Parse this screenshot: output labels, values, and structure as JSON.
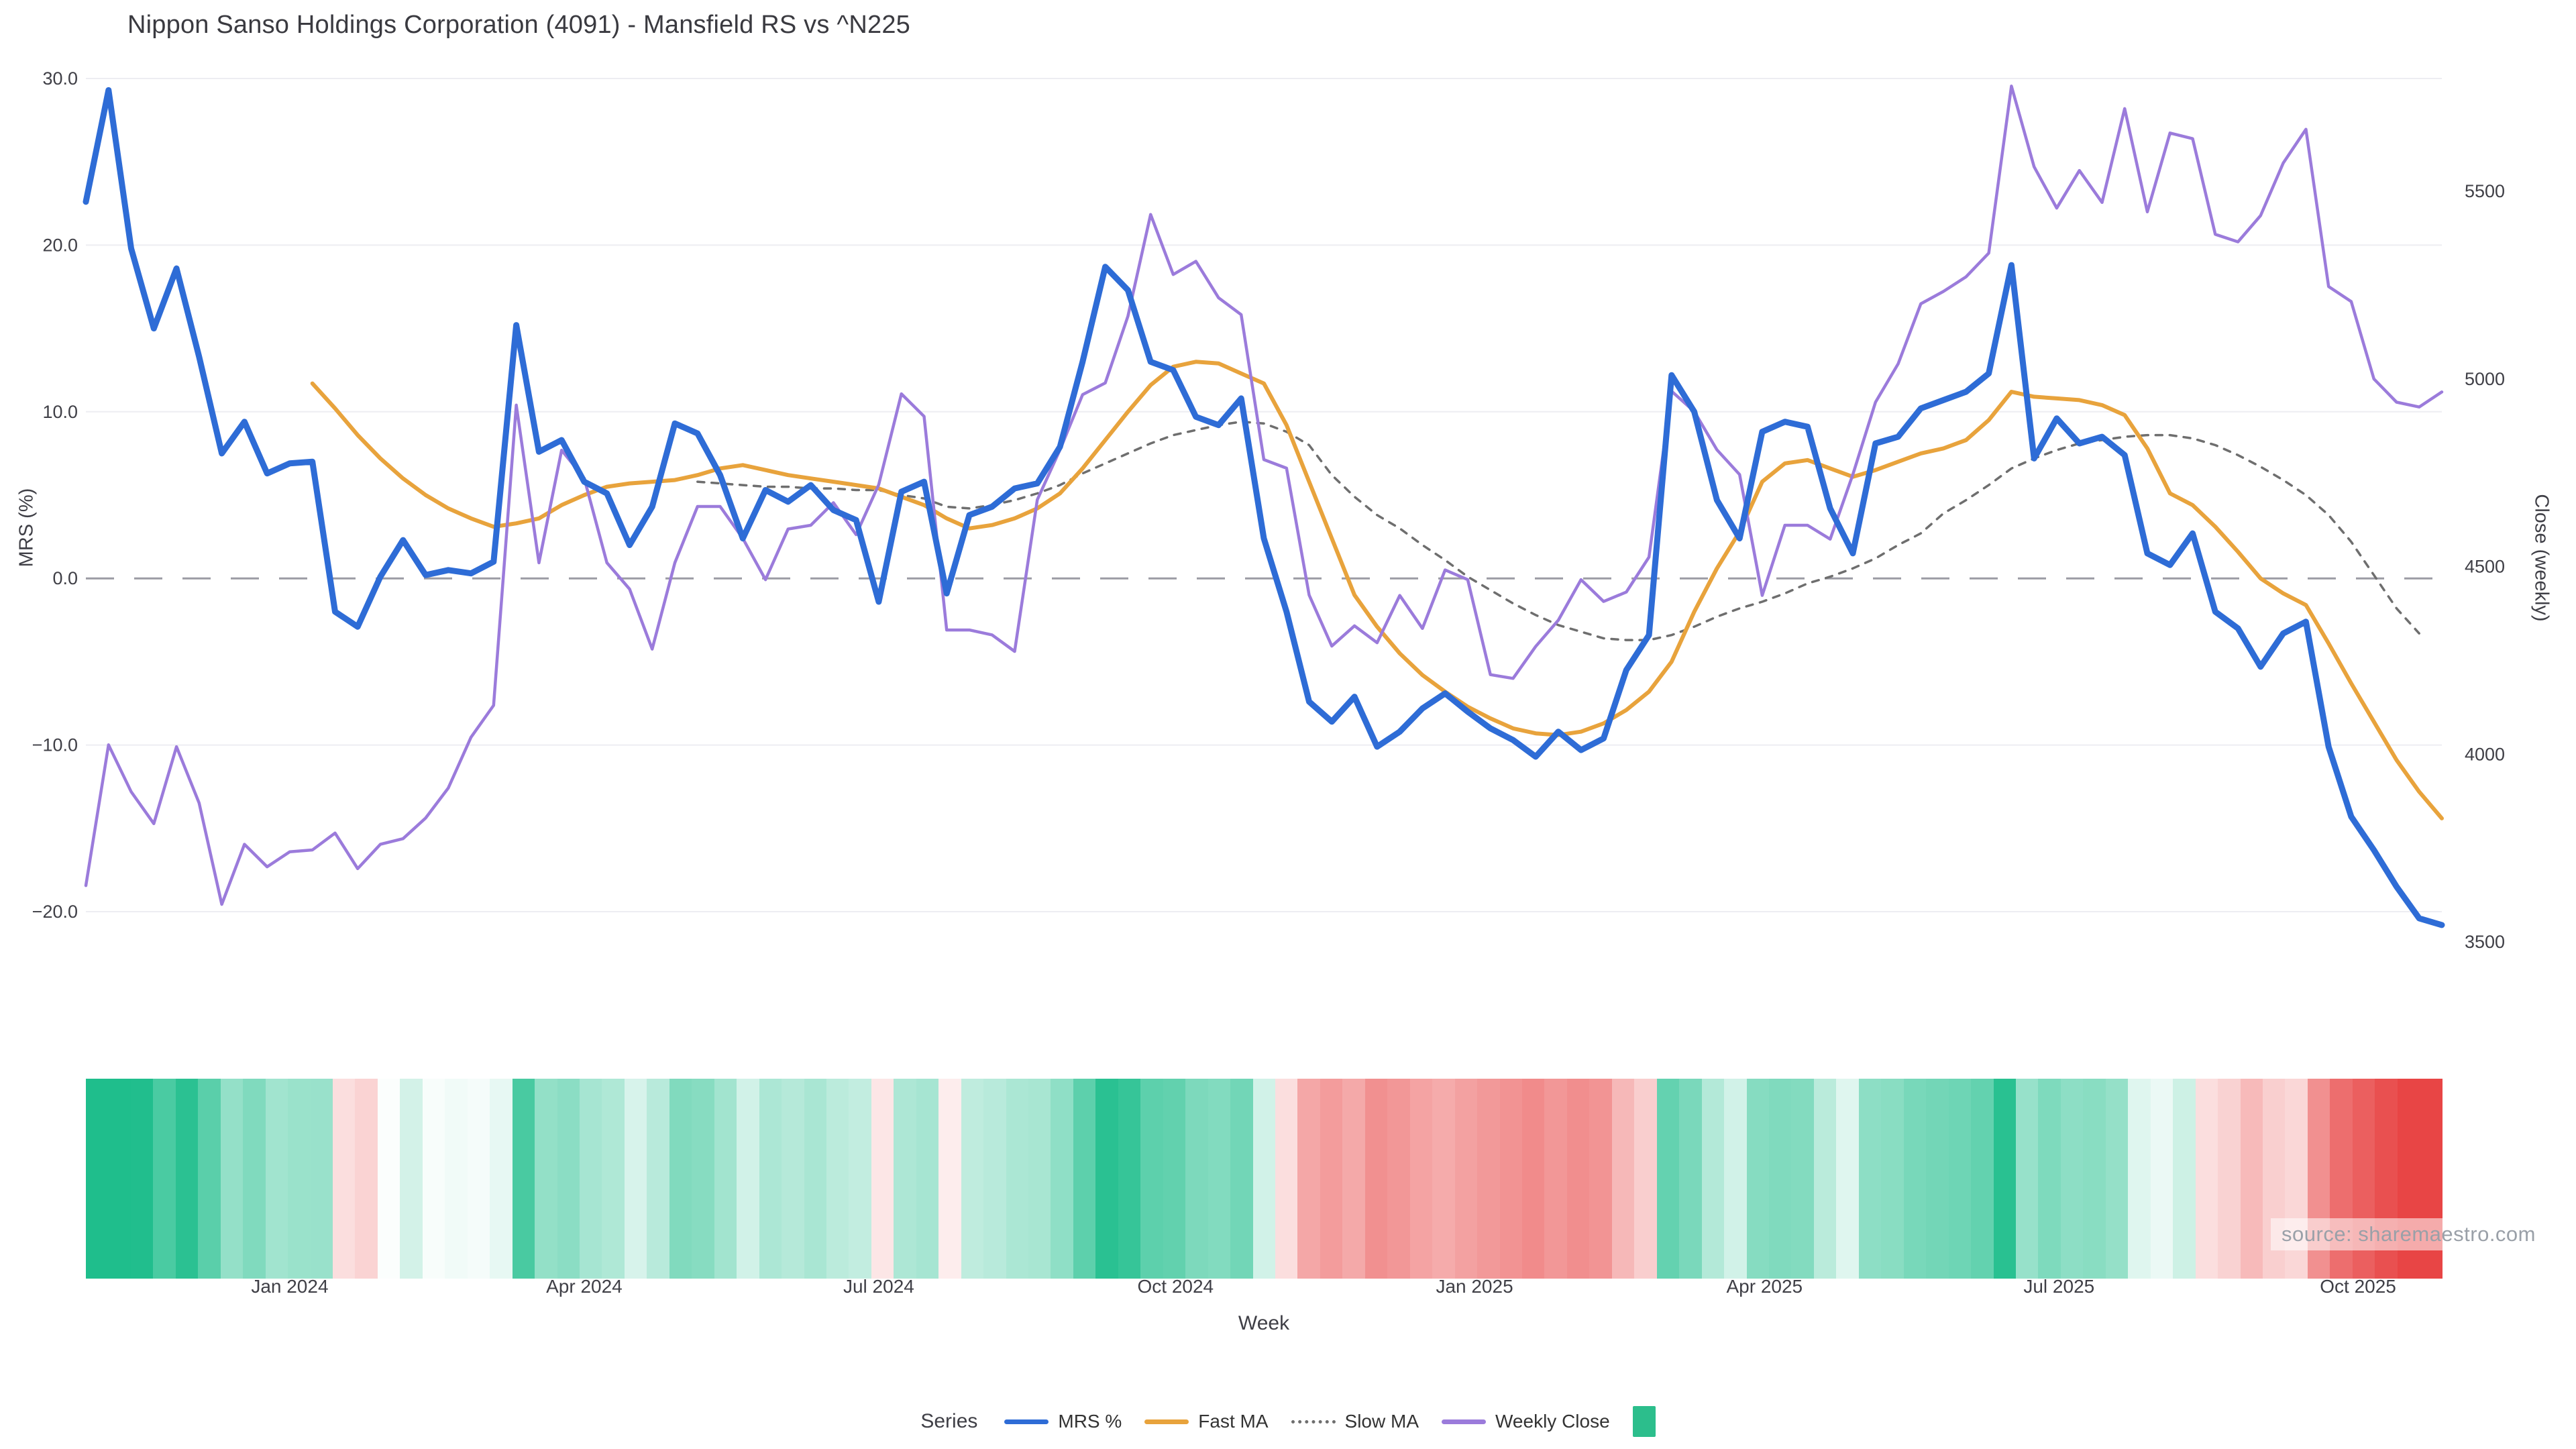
{
  "title": "Nippon Sanso Holdings Corporation (4091) - Mansfield RS vs ^N225",
  "source_watermark": "source: sharemaestro.com",
  "axes": {
    "left_label": "MRS (%)",
    "right_label": "Close (weekly)",
    "x_label": "Week"
  },
  "legend": {
    "title": "Series",
    "items": [
      {
        "label": "MRS %",
        "swatch": "line",
        "color": "#2e6cd6"
      },
      {
        "label": "Fast MA",
        "swatch": "line",
        "color": "#e8a33c"
      },
      {
        "label": "Slow MA",
        "swatch": "dash",
        "color": "#6e6e6e"
      },
      {
        "label": "Weekly Close",
        "swatch": "line",
        "color": "#9b7bdb"
      },
      {
        "label": "",
        "swatch": "square",
        "color": "#2cbe8c"
      }
    ]
  },
  "colors": {
    "grid": "#ededf2",
    "zero_line": "#9b9ba4",
    "tick_text": "#3f3f46",
    "heatmap_positive": "#1fbe8c",
    "heatmap_negative": "#e84545"
  },
  "chart_data": {
    "type": "line",
    "x_unit": "week_index",
    "n_weeks": 105,
    "x_ticks": [
      {
        "label": "Jan 2024",
        "week": 9
      },
      {
        "label": "Apr 2024",
        "week": 22
      },
      {
        "label": "Jul 2024",
        "week": 35
      },
      {
        "label": "Oct 2024",
        "week": 48.1
      },
      {
        "label": "Jan 2025",
        "week": 61.3
      },
      {
        "label": "Apr 2025",
        "week": 74.1
      },
      {
        "label": "Jul 2025",
        "week": 87.1
      },
      {
        "label": "Oct 2025",
        "week": 100.3
      }
    ],
    "left_axis": {
      "ticks": [
        {
          "v": 30,
          "label": "30.0"
        },
        {
          "v": 20,
          "label": "20.0"
        },
        {
          "v": 10,
          "label": "10.0"
        },
        {
          "v": 0,
          "label": "0.0"
        },
        {
          "v": -10,
          "label": "−10.0"
        },
        {
          "v": -20,
          "label": "−20.0"
        }
      ],
      "range": [
        -24,
        32
      ]
    },
    "right_axis": {
      "ticks": [
        {
          "v": 5500,
          "label": "5500"
        },
        {
          "v": 5000,
          "label": "5000"
        },
        {
          "v": 4500,
          "label": "4500"
        },
        {
          "v": 4000,
          "label": "4000"
        },
        {
          "v": 3500,
          "label": "3500"
        }
      ],
      "range": [
        3450,
        5820
      ]
    },
    "zero_reference_line": 0,
    "series": [
      {
        "name": "MRS %",
        "axis": "left",
        "color": "#2e6cd6",
        "width": 9,
        "start_week": 0,
        "values": [
          22.6,
          29.3,
          19.8,
          15.0,
          18.6,
          13.3,
          7.5,
          9.4,
          6.3,
          6.9,
          7.0,
          -2.0,
          -2.9,
          0.1,
          2.3,
          0.2,
          0.5,
          0.3,
          1.0,
          15.2,
          7.6,
          8.3,
          5.8,
          5.1,
          2.0,
          4.3,
          9.3,
          8.7,
          6.2,
          2.4,
          5.3,
          4.6,
          5.6,
          4.1,
          3.5,
          -1.4,
          5.2,
          5.8,
          -0.9,
          3.8,
          4.3,
          5.4,
          5.7,
          7.9,
          13.0,
          18.7,
          17.3,
          13.0,
          12.5,
          9.7,
          9.2,
          10.8,
          2.4,
          -2.0,
          -7.4,
          -8.6,
          -7.1,
          -10.1,
          -9.2,
          -7.8,
          -6.9,
          -8.0,
          -9.0,
          -9.7,
          -10.7,
          -9.2,
          -10.3,
          -9.6,
          -5.5,
          -3.4,
          12.2,
          10.0,
          4.7,
          2.4,
          8.8,
          9.4,
          9.1,
          4.2,
          1.5,
          8.1,
          8.5,
          10.2,
          10.7,
          11.2,
          12.3,
          18.8,
          7.2,
          9.6,
          8.1,
          8.5,
          7.4,
          1.5,
          0.8,
          2.7,
          -2.0,
          -3.0,
          -5.3,
          -3.3,
          -2.6,
          -10.1,
          -14.3,
          -16.3,
          -18.5,
          -20.4,
          -20.8
        ]
      },
      {
        "name": "Fast MA",
        "axis": "left",
        "color": "#e8a33c",
        "width": 6,
        "start_week": 10,
        "values": [
          11.7,
          10.2,
          8.6,
          7.2,
          6.0,
          5.0,
          4.2,
          3.6,
          3.1,
          3.3,
          3.6,
          4.4,
          5.0,
          5.5,
          5.7,
          5.8,
          5.9,
          6.2,
          6.6,
          6.8,
          6.5,
          6.2,
          6.0,
          5.8,
          5.6,
          5.4,
          4.9,
          4.4,
          3.6,
          3.0,
          3.2,
          3.6,
          4.2,
          5.1,
          6.6,
          8.3,
          10.0,
          11.6,
          12.7,
          13.0,
          12.9,
          12.3,
          11.7,
          9.2,
          5.8,
          2.4,
          -1.0,
          -2.9,
          -4.5,
          -5.8,
          -6.8,
          -7.7,
          -8.4,
          -9.0,
          -9.3,
          -9.4,
          -9.2,
          -8.7,
          -7.9,
          -6.8,
          -5.0,
          -2.0,
          0.6,
          2.8,
          5.8,
          6.9,
          7.1,
          6.6,
          6.1,
          6.5,
          7.0,
          7.5,
          7.8,
          8.3,
          9.5,
          11.2,
          10.9,
          10.8,
          10.7,
          10.4,
          9.8,
          7.8,
          5.1,
          4.4,
          3.1,
          1.6,
          0.0,
          -0.9,
          -1.6,
          -3.9,
          -6.3,
          -8.6,
          -10.9,
          -12.8,
          -14.4
        ]
      },
      {
        "name": "Slow MA",
        "axis": "left",
        "color": "#6e6e6e",
        "width": 3.5,
        "dash": "10 11",
        "start_week": 27,
        "values": [
          5.8,
          5.7,
          5.6,
          5.5,
          5.5,
          5.4,
          5.4,
          5.3,
          5.3,
          5.0,
          4.8,
          4.3,
          4.2,
          4.4,
          4.7,
          5.1,
          5.6,
          6.3,
          6.9,
          7.5,
          8.1,
          8.6,
          8.9,
          9.2,
          9.4,
          9.3,
          8.8,
          8.0,
          6.2,
          4.9,
          3.8,
          3.0,
          2.0,
          1.1,
          0.1,
          -0.7,
          -1.5,
          -2.2,
          -2.8,
          -3.2,
          -3.6,
          -3.7,
          -3.7,
          -3.4,
          -2.9,
          -2.3,
          -1.8,
          -1.4,
          -0.9,
          -0.3,
          0.1,
          0.6,
          1.2,
          2.0,
          2.7,
          3.9,
          4.7,
          5.6,
          6.6,
          7.2,
          7.7,
          8.1,
          8.3,
          8.5,
          8.6,
          8.6,
          8.4,
          8.0,
          7.4,
          6.7,
          5.9,
          5.0,
          3.8,
          2.2,
          0.2,
          -1.8,
          -3.3
        ]
      },
      {
        "name": "Weekly Close",
        "axis": "right",
        "color": "#9b7bdb",
        "width": 4.5,
        "start_week": 0,
        "values": [
          3650,
          4025,
          3900,
          3815,
          4020,
          3870,
          3600,
          3760,
          3700,
          3740,
          3745,
          3790,
          3695,
          3760,
          3775,
          3830,
          3910,
          4045,
          4130,
          4930,
          4510,
          4810,
          4735,
          4510,
          4440,
          4280,
          4510,
          4660,
          4660,
          4575,
          4465,
          4600,
          4610,
          4670,
          4585,
          4718,
          4960,
          4900,
          4331,
          4331,
          4318,
          4274,
          4678,
          4811,
          4958,
          4989,
          5167,
          5438,
          5278,
          5313,
          5216,
          5171,
          4785,
          4762,
          4424,
          4288,
          4342,
          4297,
          4423,
          4335,
          4491,
          4465,
          4212,
          4202,
          4287,
          4357,
          4465,
          4407,
          4432,
          4525,
          4967,
          4913,
          4811,
          4745,
          4423,
          4610,
          4610,
          4573,
          4745,
          4938,
          5040,
          5200,
          5233,
          5272,
          5335,
          5780,
          5565,
          5455,
          5555,
          5470,
          5720,
          5445,
          5655,
          5640,
          5385,
          5365,
          5435,
          5575,
          5665,
          5246,
          5206,
          5000,
          4938,
          4925,
          4965
        ]
      }
    ],
    "heatmap": {
      "type": "heatmap",
      "derived_from": "MRS %",
      "positive_color": "#1fbe8c",
      "negative_color": "#e84545",
      "abs_cap": 20,
      "gamma": 0.75
    }
  }
}
